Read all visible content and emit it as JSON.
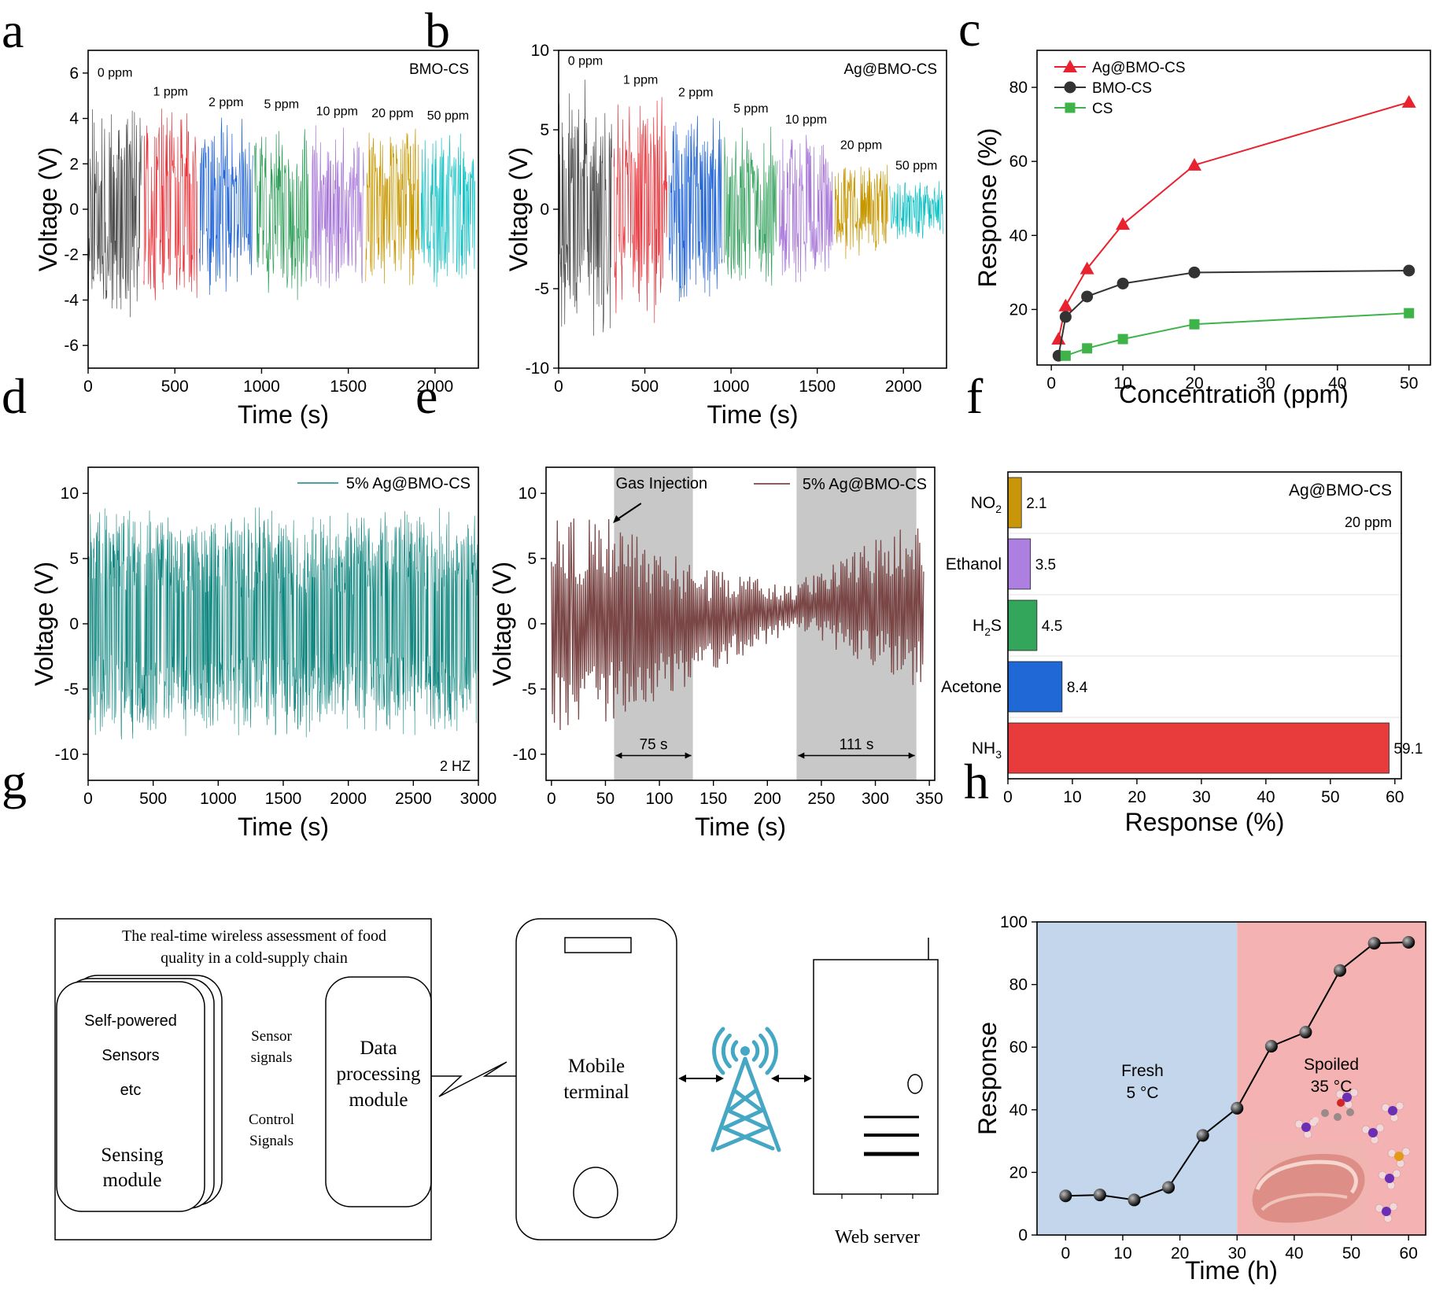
{
  "panel_letters": [
    "a",
    "b",
    "c",
    "d",
    "e",
    "f",
    "g",
    "h"
  ],
  "chart_data": [
    {
      "id": "a",
      "type": "line",
      "title": "BMO-CS",
      "xlabel": "Time (s)",
      "ylabel": "Voltage (V)",
      "xlim": [
        0,
        2250
      ],
      "ylim": [
        -7,
        7
      ],
      "xticks": [
        0,
        500,
        1000,
        1500,
        2000
      ],
      "yticks": [
        -6,
        -4,
        -2,
        0,
        2,
        4,
        6
      ],
      "series": [
        {
          "name": "0 ppm",
          "x": [
            0,
            310
          ],
          "amplitude": 5.0,
          "color": "#4d4d4d"
        },
        {
          "name": "1 ppm",
          "x": [
            320,
            630
          ],
          "amplitude": 4.6,
          "color": "#e8333a"
        },
        {
          "name": "2 ppm",
          "x": [
            640,
            950
          ],
          "amplitude": 4.2,
          "color": "#1f63d6"
        },
        {
          "name": "5 ppm",
          "x": [
            960,
            1270
          ],
          "amplitude": 4.1,
          "color": "#2e9e58"
        },
        {
          "name": "10 ppm",
          "x": [
            1280,
            1590
          ],
          "amplitude": 3.8,
          "color": "#a777d8"
        },
        {
          "name": "20 ppm",
          "x": [
            1600,
            1910
          ],
          "amplitude": 3.7,
          "color": "#c79700"
        },
        {
          "name": "50 ppm",
          "x": [
            1920,
            2230
          ],
          "amplitude": 3.6,
          "color": "#11c2c4"
        }
      ]
    },
    {
      "id": "b",
      "type": "line",
      "title": "Ag@BMO-CS",
      "xlabel": "Time (s)",
      "ylabel": "Voltage (V)",
      "xlim": [
        0,
        2250
      ],
      "ylim": [
        -10,
        10
      ],
      "xticks": [
        0,
        500,
        1000,
        1500,
        2000
      ],
      "yticks": [
        -10,
        -5,
        0,
        5,
        10
      ],
      "series": [
        {
          "name": "0 ppm",
          "x": [
            0,
            310
          ],
          "amplitude": 8.6,
          "color": "#4d4d4d"
        },
        {
          "name": "1 ppm",
          "x": [
            320,
            630
          ],
          "amplitude": 7.4,
          "color": "#e8333a"
        },
        {
          "name": "2 ppm",
          "x": [
            640,
            950
          ],
          "amplitude": 6.6,
          "color": "#1f63d6"
        },
        {
          "name": "5 ppm",
          "x": [
            960,
            1270
          ],
          "amplitude": 5.6,
          "color": "#2e9e58"
        },
        {
          "name": "10 ppm",
          "x": [
            1280,
            1590
          ],
          "amplitude": 4.9,
          "color": "#a777d8"
        },
        {
          "name": "20 ppm",
          "x": [
            1600,
            1910
          ],
          "amplitude": 3.3,
          "color": "#c79700"
        },
        {
          "name": "50 ppm",
          "x": [
            1920,
            2230
          ],
          "amplitude": 2.0,
          "color": "#11c2c4"
        }
      ]
    },
    {
      "id": "c",
      "type": "line",
      "xlabel": "Concentration (ppm)",
      "ylabel": "Response (%)",
      "xlim": [
        -2,
        53
      ],
      "ylim": [
        5,
        90
      ],
      "xticks": [
        0,
        10,
        20,
        30,
        40,
        50
      ],
      "yticks": [
        20,
        40,
        60,
        80
      ],
      "legend": "top-left",
      "series": [
        {
          "name": "Ag@BMO-CS",
          "color": "#e8222e",
          "marker": "triangle",
          "x": [
            1,
            2,
            5,
            10,
            20,
            50
          ],
          "y": [
            12,
            21,
            31,
            43,
            59,
            76
          ]
        },
        {
          "name": "BMO-CS",
          "color": "#333333",
          "marker": "circle",
          "x": [
            1,
            2,
            5,
            10,
            20,
            50
          ],
          "y": [
            7.5,
            18,
            23.5,
            27,
            30,
            30.5
          ]
        },
        {
          "name": "CS",
          "color": "#3db34a",
          "marker": "square",
          "x": [
            2,
            5,
            10,
            20,
            50
          ],
          "y": [
            7.5,
            9.5,
            12,
            16,
            19
          ]
        }
      ]
    },
    {
      "id": "d",
      "type": "line",
      "xlabel": "Time (s)",
      "ylabel": "Voltage (V)",
      "xlim": [
        0,
        3000
      ],
      "ylim": [
        -12,
        12
      ],
      "xticks": [
        0,
        500,
        1000,
        1500,
        2000,
        2500,
        3000
      ],
      "yticks": [
        -10,
        -5,
        0,
        5,
        10
      ],
      "legend": "top-right",
      "annotation": "2 HZ",
      "series": [
        {
          "name": "5% Ag@BMO-CS",
          "color": "#0e857e",
          "amplitude": 8.0,
          "x": [
            0,
            3000
          ]
        }
      ]
    },
    {
      "id": "e",
      "type": "line",
      "xlabel": "Time (s)",
      "ylabel": "Voltage (V)",
      "xlim": [
        -5,
        355
      ],
      "ylim": [
        -12,
        12
      ],
      "xticks": [
        0,
        50,
        100,
        150,
        200,
        250,
        300,
        350
      ],
      "yticks": [
        -10,
        -5,
        0,
        5,
        10
      ],
      "legend": "top-right",
      "shaded": [
        {
          "x": [
            58,
            131
          ],
          "label": "75 s"
        },
        {
          "x": [
            227,
            338
          ],
          "label": "111 s"
        }
      ],
      "annotation": "Gas Injection",
      "series": [
        {
          "name": "5% Ag@BMO-CS",
          "color": "#7a4646",
          "x": [
            0,
            345
          ]
        }
      ]
    },
    {
      "id": "f",
      "type": "bar",
      "title": "Ag@BMO-CS",
      "subtitle": "20 ppm",
      "xlabel": "Response (%)",
      "xlim": [
        0,
        61
      ],
      "xticks": [
        0,
        10,
        20,
        30,
        40,
        50,
        60
      ],
      "categories": [
        {
          "base": "NO",
          "sub": "2",
          "tail": ""
        },
        {
          "base": "Ethanol",
          "sub": "",
          "tail": ""
        },
        {
          "base": "H",
          "sub": "2",
          "tail": "S"
        },
        {
          "base": "Acetone",
          "sub": "",
          "tail": ""
        },
        {
          "base": "NH",
          "sub": "3",
          "tail": ""
        }
      ],
      "values": [
        2.1,
        3.5,
        4.5,
        8.4,
        59.1
      ],
      "value_labels": [
        "2.1",
        "3.5",
        "4.5",
        "8.4",
        "59.1"
      ],
      "colors": [
        "#c9960a",
        "#ad7fe0",
        "#33a65c",
        "#1f68d6",
        "#e83c3c"
      ]
    },
    {
      "id": "h",
      "type": "line",
      "xlabel": "Time (h)",
      "ylabel": "Response",
      "xlim": [
        -5,
        63
      ],
      "ylim": [
        0,
        100
      ],
      "xticks": [
        0,
        10,
        20,
        30,
        40,
        50,
        60
      ],
      "yticks": [
        0,
        20,
        40,
        60,
        80,
        100
      ],
      "regions": [
        {
          "label": "Fresh",
          "sublabel": "5 °C",
          "x": [
            -5,
            30
          ],
          "color": "#c3d6ec"
        },
        {
          "label": "Spoiled",
          "sublabel": "35 °C",
          "x": [
            30,
            63
          ],
          "color": "#f4b2b2"
        }
      ],
      "series": [
        {
          "name": "Response",
          "color": "#000000",
          "x": [
            0,
            6,
            12,
            18,
            24,
            30,
            36,
            42,
            48,
            54,
            60
          ],
          "y": [
            12.5,
            12.8,
            11.2,
            15.2,
            31.8,
            40.5,
            60.3,
            64.8,
            84.5,
            93.2,
            93.5
          ]
        }
      ]
    }
  ],
  "diagram_g": {
    "title_line1": "The real-time wireless assessment of food",
    "title_line2": "quality in a cold-supply chain",
    "sensing_items": [
      "Self-powered",
      "Sensors",
      "etc"
    ],
    "sensing_module": [
      "Sensing",
      "module"
    ],
    "signal_labels": [
      "Sensor",
      "signals",
      "Control",
      "Signals"
    ],
    "data_module": [
      "Data",
      "processing",
      "module"
    ],
    "mobile": [
      "Mobile",
      "terminal"
    ],
    "web_server": "Web server",
    "tower_color": "#45a7c3"
  }
}
